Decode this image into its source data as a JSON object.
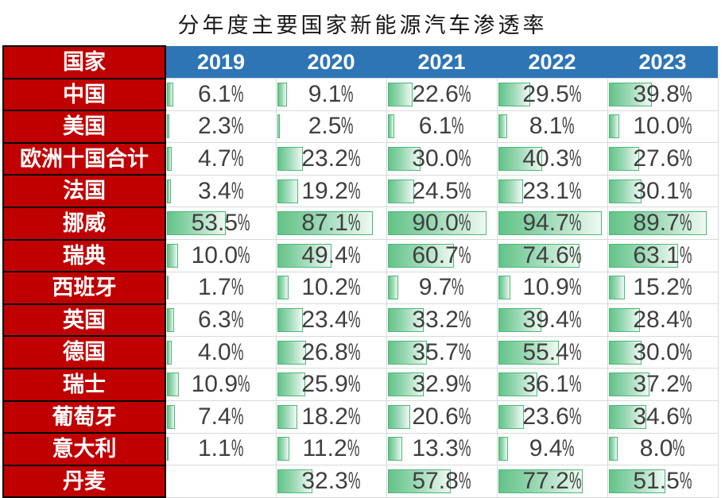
{
  "title": "分年度主要国家新能源汽车渗透率",
  "table": {
    "country_header": "国家"
  },
  "chart_data": {
    "type": "table",
    "title": "分年度主要国家新能源汽车渗透率",
    "categories": [
      "2019",
      "2020",
      "2021",
      "2022",
      "2023"
    ],
    "unit": "%",
    "bar_axis": [
      0,
      100
    ],
    "rows": [
      {
        "country": "中国",
        "slug": "china",
        "values": [
          6.1,
          9.1,
          22.6,
          29.5,
          39.8
        ]
      },
      {
        "country": "美国",
        "slug": "usa",
        "values": [
          2.3,
          2.5,
          6.1,
          8.1,
          10.0
        ]
      },
      {
        "country": "欧洲十国合计",
        "slug": "europe-10-total",
        "values": [
          4.7,
          23.2,
          30.0,
          40.3,
          27.6
        ]
      },
      {
        "country": "法国",
        "slug": "france",
        "values": [
          3.4,
          19.2,
          24.5,
          23.1,
          30.1
        ]
      },
      {
        "country": "挪威",
        "slug": "norway",
        "values": [
          53.5,
          87.1,
          90.0,
          94.7,
          89.7
        ]
      },
      {
        "country": "瑞典",
        "slug": "sweden",
        "values": [
          10.0,
          49.4,
          60.7,
          74.6,
          63.1
        ]
      },
      {
        "country": "西班牙",
        "slug": "spain",
        "values": [
          1.7,
          10.2,
          9.7,
          10.9,
          15.2
        ]
      },
      {
        "country": "英国",
        "slug": "uk",
        "values": [
          6.3,
          23.4,
          33.2,
          39.4,
          28.4
        ]
      },
      {
        "country": "德国",
        "slug": "germany",
        "values": [
          4.0,
          26.8,
          35.7,
          55.4,
          30.0
        ]
      },
      {
        "country": "瑞士",
        "slug": "switzerland",
        "values": [
          10.9,
          25.9,
          32.9,
          36.1,
          37.2
        ]
      },
      {
        "country": "葡萄牙",
        "slug": "portugal",
        "values": [
          7.4,
          18.2,
          20.6,
          23.6,
          34.6
        ]
      },
      {
        "country": "意大利",
        "slug": "italy",
        "values": [
          1.1,
          11.2,
          13.3,
          9.4,
          8.0
        ]
      },
      {
        "country": "丹麦",
        "slug": "denmark",
        "values": [
          null,
          32.3,
          57.8,
          77.2,
          51.5
        ]
      }
    ]
  },
  "colors": {
    "country_header_bg": "#C00000",
    "year_header_bg": "#2E75B6",
    "header_text": "#FFFFFF",
    "country_cell_border": "#000000",
    "grid_line": "#D9D9D9",
    "bar_border": "#4CB876",
    "bar_fill_left": "#63C388",
    "bar_fill_right": "#EFF9F3",
    "value_text": "#3F3F3F"
  }
}
